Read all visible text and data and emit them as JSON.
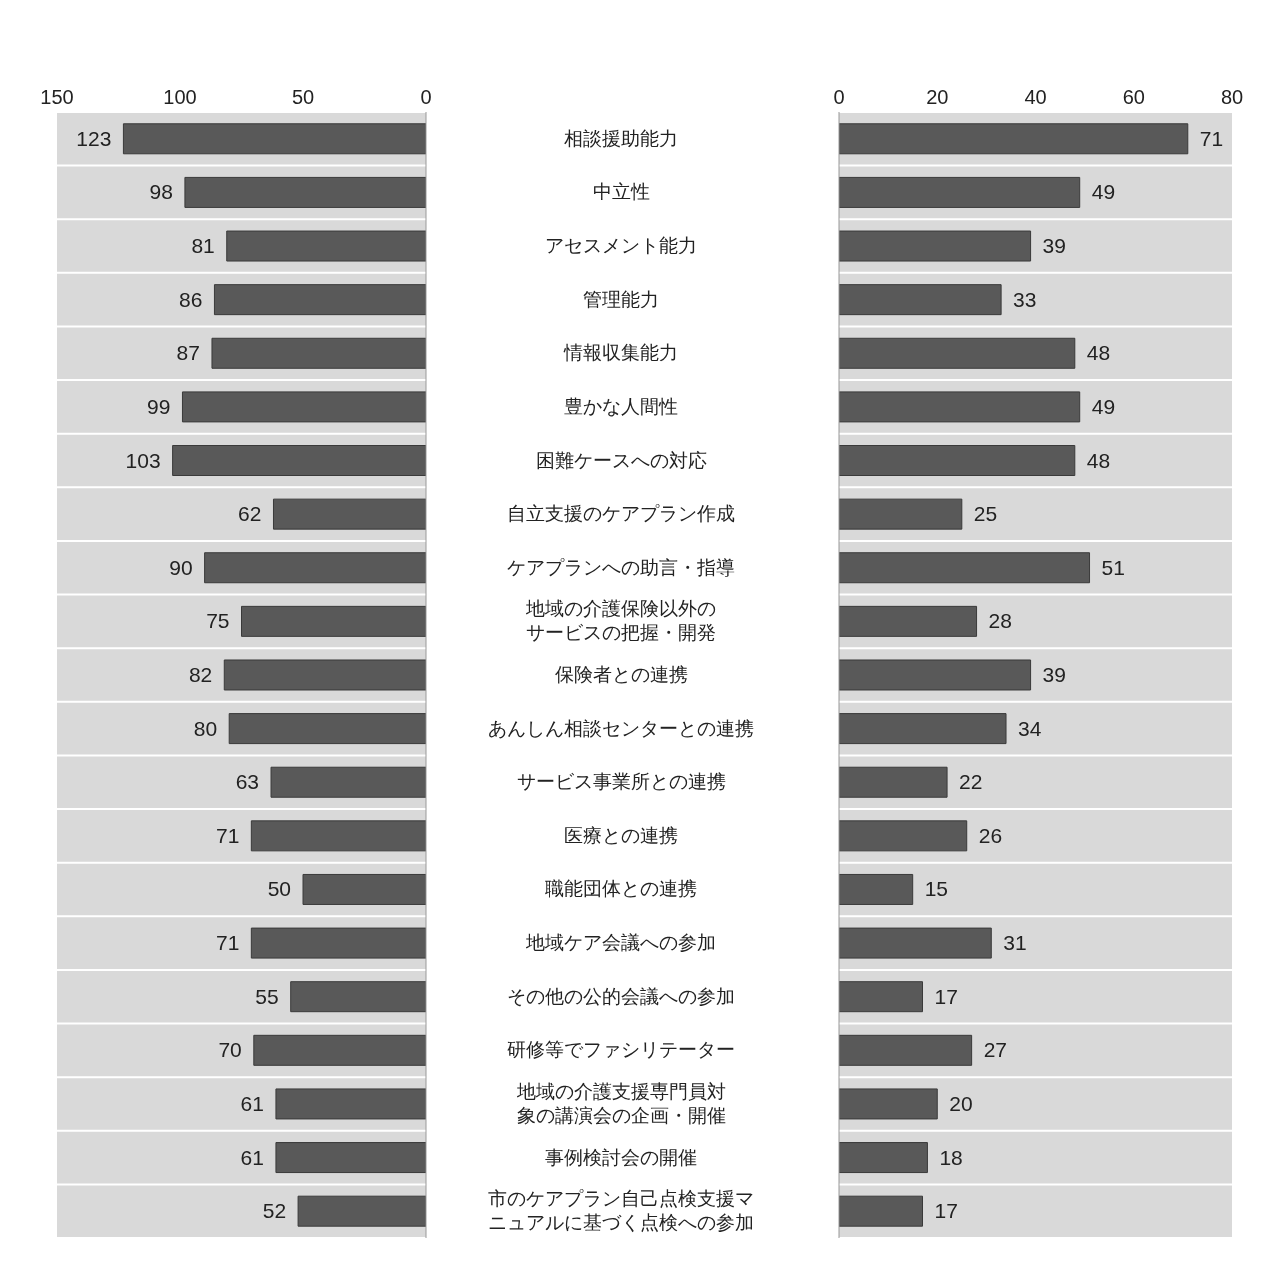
{
  "chart_data": [
    {
      "type": "bar",
      "orientation": "horizontal",
      "categories": [
        null,
        null,
        null,
        null,
        null,
        null,
        null,
        null,
        null,
        null,
        null,
        null,
        null,
        null,
        null,
        null,
        null,
        null,
        null,
        null,
        null
      ],
      "values": [
        123,
        98,
        81,
        86,
        87,
        99,
        103,
        62,
        90,
        75,
        82,
        80,
        63,
        71,
        50,
        71,
        55,
        70,
        61,
        61,
        52
      ],
      "color": "#595959",
      "xlim": [
        150,
        0
      ],
      "xticks": [
        150,
        100,
        50,
        0
      ],
      "data_labels": true,
      "grid": "y",
      "tick_labels": "x"
    },
    {
      "type": "bar",
      "orientation": "horizontal",
      "categories": [
        "相談援助能力",
        "中立性",
        "アセスメント能力",
        "管理能力",
        "情報収集能力",
        "豊かな人間性",
        "困難ケースへの対応",
        "自立支援のケアプラン作成",
        "ケアプランへの助言・指導",
        "地域の介護保険以外のサービスの把握・開発",
        "保険者との連携",
        "あんしん相談センターとの連携",
        "サービス事業所との連携",
        "医療との連携",
        "職能団体との連携",
        "地域ケア会議への参加",
        "その他の公的会議への参加",
        "研修等でファシリテーター",
        "地域の介護支援専門員対象の講演会の企画・開催",
        "事例検討会の開催",
        "市のケアプラン自己点検支援マニュアルに基づく点検への参加"
      ],
      "values": [
        71,
        49,
        39,
        33,
        48,
        49,
        48,
        25,
        51,
        28,
        39,
        34,
        22,
        26,
        15,
        31,
        17,
        27,
        20,
        18,
        17
      ],
      "color": "#595959",
      "xlim": [
        0,
        80
      ],
      "xticks": [
        0,
        20,
        40,
        60,
        80
      ],
      "data_labels": true,
      "grid": "y"
    }
  ]
}
